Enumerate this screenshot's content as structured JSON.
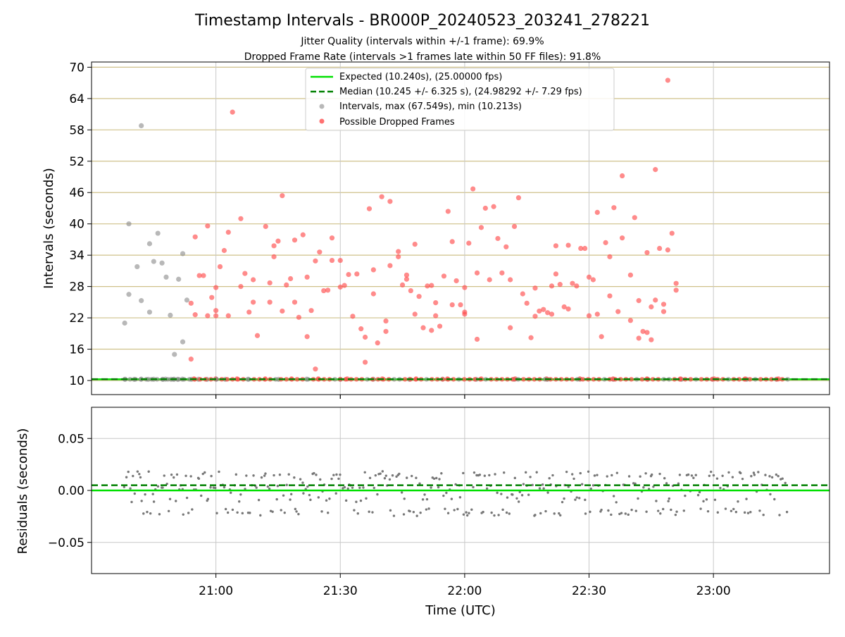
{
  "chart_data": [
    {
      "type": "scatter",
      "panel": "intervals",
      "title": "Timestamp Intervals - BR000P_20240523_203241_278221",
      "subtitle_1": "Jitter Quality (intervals within +/-1 frame): 69.9%",
      "subtitle_2": "Dropped Frame Rate (intervals >1 frames late within 50 FF files): 91.8%",
      "ylabel": "Intervals (seconds)",
      "xlabel": "",
      "ylim": [
        7.3,
        71
      ],
      "yticks": [
        "10",
        "16",
        "22",
        "28",
        "34",
        "40",
        "46",
        "52",
        "58",
        "64",
        "70"
      ],
      "xlim": [
        "20:30",
        "23:28"
      ],
      "xticks": [
        "21:00",
        "21:30",
        "22:00",
        "22:30",
        "23:00"
      ],
      "grid": "on",
      "legend_position": "top-center",
      "expected_line": 10.24,
      "median_line": 10.245,
      "series": [
        {
          "name": "Expected (10.240s), (25.00000 fps)",
          "kind": "line",
          "color": "#00e000",
          "dash": "solid",
          "y": 10.24
        },
        {
          "name": "Median (10.245 +/- 6.325 s), (24.98292 +/- 7.29 fps)",
          "kind": "line",
          "color": "#008000",
          "dash": "dashed",
          "y": 10.245
        },
        {
          "name": "Intervals, max (67.549s), min (10.213s)",
          "kind": "scatter",
          "color": "#888888",
          "points": [
            [
              "20:38",
              21.0
            ],
            [
              "20:39",
              26.5
            ],
            [
              "20:39",
              40.0
            ],
            [
              "20:41",
              31.8
            ],
            [
              "20:42",
              25.3
            ],
            [
              "20:42",
              58.8
            ],
            [
              "20:44",
              23.1
            ],
            [
              "20:44",
              36.2
            ],
            [
              "20:45",
              32.8
            ],
            [
              "20:46",
              38.2
            ],
            [
              "20:47",
              32.5
            ],
            [
              "20:48",
              29.8
            ],
            [
              "20:49",
              22.5
            ],
            [
              "20:50",
              15.0
            ],
            [
              "20:51",
              29.4
            ],
            [
              "20:52",
              17.4
            ],
            [
              "20:52",
              34.3
            ],
            [
              "20:53",
              25.4
            ],
            [
              "20:38",
              10.24
            ],
            [
              "20:40",
              10.22
            ],
            [
              "20:42",
              10.25
            ],
            [
              "20:44",
              10.23
            ],
            [
              "20:45",
              10.24
            ],
            [
              "20:47",
              10.22
            ],
            [
              "20:48",
              10.25
            ],
            [
              "20:49",
              10.23
            ],
            [
              "20:50",
              10.24
            ],
            [
              "20:51",
              10.22
            ],
            [
              "20:52",
              10.25
            ],
            [
              "20:54",
              10.23
            ],
            [
              "20:56",
              10.24
            ],
            [
              "20:58",
              10.22
            ],
            [
              "21:00",
              10.25
            ],
            [
              "21:02",
              10.23
            ],
            [
              "21:08",
              10.24
            ],
            [
              "21:15",
              10.22
            ],
            [
              "21:22",
              10.25
            ],
            [
              "21:30",
              10.23
            ],
            [
              "21:38",
              10.24
            ],
            [
              "21:47",
              10.22
            ],
            [
              "21:55",
              10.25
            ],
            [
              "22:03",
              10.23
            ],
            [
              "22:12",
              10.24
            ],
            [
              "22:20",
              10.22
            ],
            [
              "22:28",
              10.25
            ],
            [
              "22:36",
              10.23
            ],
            [
              "22:44",
              10.24
            ],
            [
              "22:52",
              10.22
            ],
            [
              "23:00",
              10.25
            ],
            [
              "23:08",
              10.23
            ],
            [
              "23:15",
              10.24
            ]
          ]
        },
        {
          "name": "Possible Dropped Frames",
          "kind": "scatter",
          "color": "#ff4d4d",
          "points": [
            [
              "20:54",
              14.1
            ],
            [
              "20:54",
              24.8
            ],
            [
              "20:55",
              22.6
            ],
            [
              "20:55",
              37.5
            ],
            [
              "20:56",
              30.1
            ],
            [
              "20:57",
              30.1
            ],
            [
              "20:58",
              22.4
            ],
            [
              "20:58",
              39.6
            ],
            [
              "20:59",
              25.9
            ],
            [
              "21:00",
              22.4
            ],
            [
              "21:00",
              23.4
            ],
            [
              "21:00",
              27.8
            ],
            [
              "21:01",
              31.8
            ],
            [
              "21:02",
              34.9
            ],
            [
              "21:03",
              38.4
            ],
            [
              "21:03",
              22.4
            ],
            [
              "21:04",
              61.4
            ],
            [
              "21:06",
              41.0
            ],
            [
              "21:06",
              28.0
            ],
            [
              "21:07",
              30.5
            ],
            [
              "21:08",
              23.1
            ],
            [
              "21:09",
              29.3
            ],
            [
              "21:09",
              25.0
            ],
            [
              "21:10",
              18.6
            ],
            [
              "21:12",
              39.5
            ],
            [
              "21:13",
              28.7
            ],
            [
              "21:13",
              25.0
            ],
            [
              "21:14",
              33.7
            ],
            [
              "21:14",
              35.8
            ],
            [
              "21:15",
              36.7
            ],
            [
              "21:16",
              23.3
            ],
            [
              "21:16",
              45.4
            ],
            [
              "21:17",
              28.3
            ],
            [
              "21:18",
              29.5
            ],
            [
              "21:19",
              25.0
            ],
            [
              "21:19",
              36.9
            ],
            [
              "21:20",
              22.1
            ],
            [
              "21:21",
              37.9
            ],
            [
              "21:22",
              18.4
            ],
            [
              "21:22",
              29.8
            ],
            [
              "21:23",
              23.4
            ],
            [
              "21:24",
              12.2
            ],
            [
              "21:24",
              32.9
            ],
            [
              "21:25",
              34.6
            ],
            [
              "21:26",
              27.2
            ],
            [
              "21:27",
              27.3
            ],
            [
              "21:28",
              37.3
            ],
            [
              "21:28",
              33.0
            ],
            [
              "21:30",
              33.0
            ],
            [
              "21:30",
              27.9
            ],
            [
              "21:31",
              28.2
            ],
            [
              "21:32",
              30.3
            ],
            [
              "21:33",
              22.3
            ],
            [
              "21:34",
              30.4
            ],
            [
              "21:35",
              19.9
            ],
            [
              "21:36",
              13.5
            ],
            [
              "21:36",
              18.3
            ],
            [
              "21:37",
              42.9
            ],
            [
              "21:38",
              31.2
            ],
            [
              "21:38",
              26.6
            ],
            [
              "21:39",
              17.2
            ],
            [
              "21:40",
              45.2
            ],
            [
              "21:41",
              21.4
            ],
            [
              "21:41",
              19.4
            ],
            [
              "21:42",
              32.0
            ],
            [
              "21:42",
              44.3
            ],
            [
              "21:44",
              33.7
            ],
            [
              "21:44",
              34.7
            ],
            [
              "21:45",
              28.3
            ],
            [
              "21:46",
              30.2
            ],
            [
              "21:46",
              29.4
            ],
            [
              "21:47",
              27.2
            ],
            [
              "21:48",
              22.7
            ],
            [
              "21:48",
              36.1
            ],
            [
              "21:49",
              26.1
            ],
            [
              "21:50",
              20.1
            ],
            [
              "21:51",
              28.1
            ],
            [
              "21:52",
              28.2
            ],
            [
              "21:52",
              19.6
            ],
            [
              "21:53",
              22.4
            ],
            [
              "21:53",
              24.9
            ],
            [
              "21:54",
              20.4
            ],
            [
              "21:55",
              30.0
            ],
            [
              "21:56",
              42.4
            ],
            [
              "21:57",
              24.5
            ],
            [
              "21:57",
              36.6
            ],
            [
              "21:58",
              29.1
            ],
            [
              "21:59",
              24.5
            ],
            [
              "22:00",
              23.1
            ],
            [
              "22:00",
              27.8
            ],
            [
              "22:00",
              22.7
            ],
            [
              "22:01",
              36.3
            ],
            [
              "22:02",
              46.7
            ],
            [
              "22:03",
              17.9
            ],
            [
              "22:03",
              30.6
            ],
            [
              "22:04",
              39.3
            ],
            [
              "22:05",
              43.0
            ],
            [
              "22:06",
              29.3
            ],
            [
              "22:07",
              43.3
            ],
            [
              "22:08",
              37.2
            ],
            [
              "22:09",
              30.6
            ],
            [
              "22:10",
              35.6
            ],
            [
              "22:11",
              29.3
            ],
            [
              "22:11",
              20.1
            ],
            [
              "22:12",
              39.5
            ],
            [
              "22:13",
              45.0
            ],
            [
              "22:14",
              26.6
            ],
            [
              "22:15",
              24.8
            ],
            [
              "22:16",
              18.2
            ],
            [
              "22:17",
              22.3
            ],
            [
              "22:17",
              27.7
            ],
            [
              "22:18",
              23.3
            ],
            [
              "22:19",
              23.6
            ],
            [
              "22:20",
              23.0
            ],
            [
              "22:21",
              22.7
            ],
            [
              "22:21",
              28.1
            ],
            [
              "22:22",
              30.4
            ],
            [
              "22:22",
              35.8
            ],
            [
              "22:23",
              28.4
            ],
            [
              "22:24",
              24.1
            ],
            [
              "22:25",
              35.9
            ],
            [
              "22:25",
              23.7
            ],
            [
              "22:26",
              28.6
            ],
            [
              "22:27",
              28.1
            ],
            [
              "22:28",
              35.3
            ],
            [
              "22:29",
              35.3
            ],
            [
              "22:30",
              22.4
            ],
            [
              "22:30",
              29.8
            ],
            [
              "22:31",
              29.3
            ],
            [
              "22:32",
              42.2
            ],
            [
              "22:32",
              22.7
            ],
            [
              "22:33",
              18.4
            ],
            [
              "22:34",
              36.4
            ],
            [
              "22:35",
              26.2
            ],
            [
              "22:35",
              33.7
            ],
            [
              "22:36",
              43.1
            ],
            [
              "22:37",
              23.2
            ],
            [
              "22:38",
              49.2
            ],
            [
              "22:38",
              37.3
            ],
            [
              "22:40",
              21.5
            ],
            [
              "22:40",
              30.2
            ],
            [
              "22:41",
              41.2
            ],
            [
              "22:42",
              18.1
            ],
            [
              "22:42",
              25.3
            ],
            [
              "22:43",
              19.4
            ],
            [
              "22:44",
              34.5
            ],
            [
              "22:44",
              19.2
            ],
            [
              "22:45",
              17.8
            ],
            [
              "22:45",
              24.1
            ],
            [
              "22:46",
              50.4
            ],
            [
              "22:46",
              25.4
            ],
            [
              "22:47",
              35.3
            ],
            [
              "22:48",
              23.2
            ],
            [
              "22:48",
              24.6
            ],
            [
              "22:49",
              67.5
            ],
            [
              "22:49",
              35.0
            ],
            [
              "22:50",
              38.2
            ],
            [
              "22:51",
              28.6
            ],
            [
              "22:51",
              27.3
            ],
            [
              "20:55",
              10.3
            ],
            [
              "21:00",
              10.3
            ],
            [
              "21:05",
              10.3
            ],
            [
              "21:12",
              10.3
            ],
            [
              "21:18",
              10.3
            ],
            [
              "21:25",
              10.3
            ],
            [
              "21:32",
              10.3
            ],
            [
              "21:40",
              10.3
            ],
            [
              "21:48",
              10.3
            ],
            [
              "21:56",
              10.3
            ],
            [
              "22:04",
              10.3
            ],
            [
              "22:12",
              10.3
            ],
            [
              "22:20",
              10.3
            ],
            [
              "22:28",
              10.3
            ],
            [
              "22:36",
              10.3
            ],
            [
              "22:44",
              10.3
            ],
            [
              "22:52",
              10.3
            ],
            [
              "23:00",
              10.3
            ],
            [
              "23:08",
              10.3
            ],
            [
              "23:16",
              10.3
            ]
          ]
        }
      ]
    },
    {
      "type": "scatter",
      "panel": "residuals",
      "ylabel": "Residuals (seconds)",
      "xlabel": "Time (UTC)",
      "ylim": [
        -0.08,
        0.08
      ],
      "yticks": [
        "−0.05",
        "0.00",
        "0.05"
      ],
      "xlim": [
        "20:30",
        "23:28"
      ],
      "xticks": [
        "21:00",
        "21:30",
        "22:00",
        "22:30",
        "23:00"
      ],
      "grid": "on",
      "expected_line": 0.0,
      "median_line": 0.005,
      "series": [
        {
          "name": "Residuals",
          "kind": "scatter",
          "color": "#777777",
          "pattern": "points cluster in bands near +0.015, +0.004, −0.004 and −0.021 seconds between 20:38 and 23:18",
          "bands": [
            0.016,
            0.013,
            0.005,
            0.003,
            -0.003,
            -0.009,
            -0.02,
            -0.022
          ],
          "x_range": [
            "20:38",
            "23:18"
          ]
        }
      ]
    }
  ],
  "colors": {
    "expected": "#00e000",
    "median": "#008000",
    "intervals": "#888888",
    "dropped": "#ff4d4d",
    "gridline_h": "#cfc18a",
    "gridline_v": "#c8c8c8"
  }
}
